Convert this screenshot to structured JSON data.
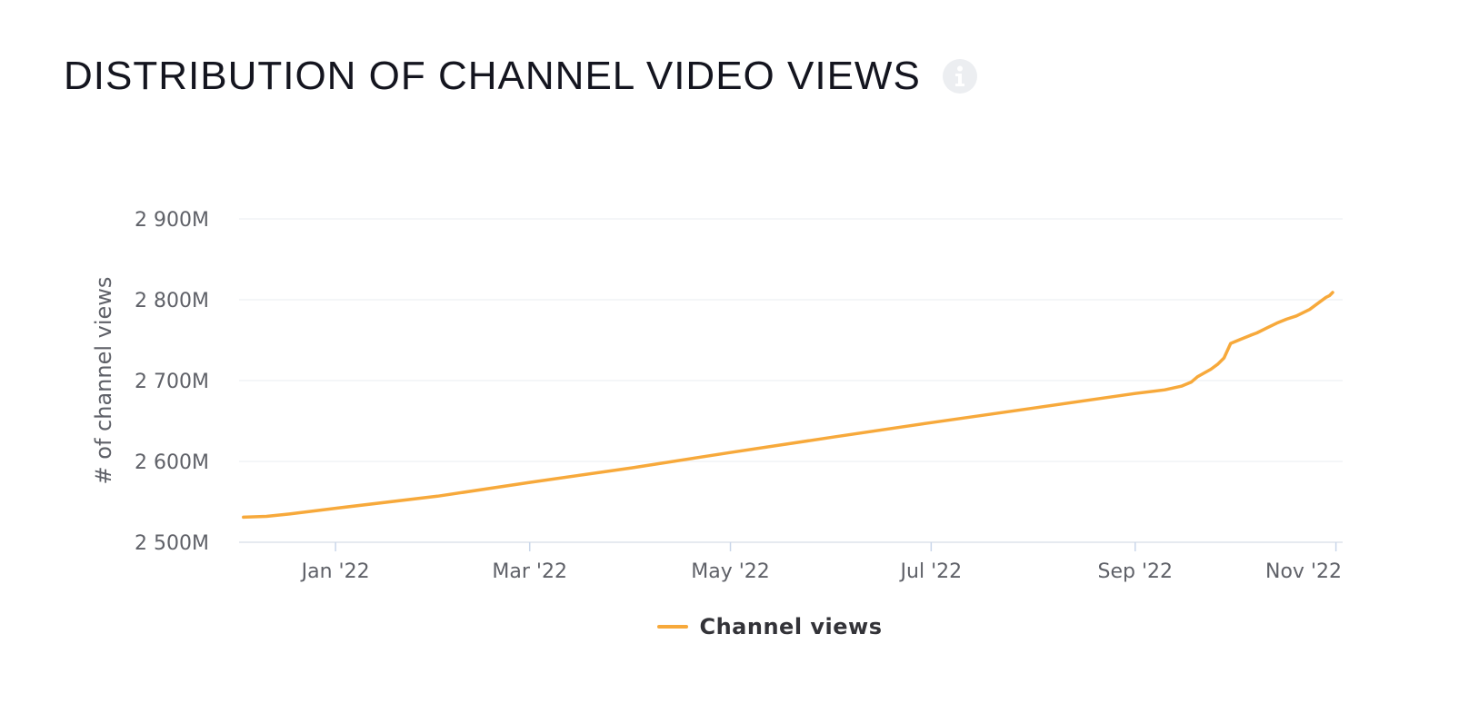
{
  "header": {
    "title": "DISTRIBUTION OF CHANNEL VIDEO VIEWS",
    "info_icon": "info-icon"
  },
  "colors": {
    "series": "#f7a93b",
    "grid": "#eef0f3",
    "axis": "#dde3ec",
    "tick_mark": "#c9d6ea"
  },
  "chart_data": {
    "type": "line",
    "title": "DISTRIBUTION OF CHANNEL VIDEO VIEWS",
    "xlabel": "",
    "ylabel": "# of channel views",
    "xlim": [
      "2021-12-06",
      "2022-10-31"
    ],
    "ylim": [
      2500,
      2900
    ],
    "y_unit": "M",
    "y_ticks": [
      2500,
      2600,
      2700,
      2800,
      2900
    ],
    "y_tick_labels": [
      "2 500M",
      "2 600M",
      "2 700M",
      "2 800M",
      "2 900M"
    ],
    "x_ticks": [
      "2022-01-01",
      "2022-03-01",
      "2022-05-01",
      "2022-07-01",
      "2022-09-01",
      "2022-11-01"
    ],
    "x_tick_labels": [
      "Jan '22",
      "Mar '22",
      "May '22",
      "Jul '22",
      "Sep '22",
      "Nov '22"
    ],
    "grid": true,
    "legend_position": "bottom-center",
    "series": [
      {
        "name": "Channel views",
        "points": [
          [
            "2021-12-04",
            2531.0
          ],
          [
            "2021-12-11",
            2532.0
          ],
          [
            "2021-12-18",
            2535.0
          ],
          [
            "2022-01-01",
            2542.0
          ],
          [
            "2022-02-01",
            2557.0
          ],
          [
            "2022-03-01",
            2574.0
          ],
          [
            "2022-04-01",
            2592.0
          ],
          [
            "2022-05-01",
            2611.0
          ],
          [
            "2022-06-01",
            2630.0
          ],
          [
            "2022-07-01",
            2648.0
          ],
          [
            "2022-08-01",
            2666.0
          ],
          [
            "2022-09-01",
            2684.0
          ],
          [
            "2022-09-10",
            2688.5
          ],
          [
            "2022-09-15",
            2693.0
          ],
          [
            "2022-09-18",
            2698.0
          ],
          [
            "2022-09-20",
            2705.0
          ],
          [
            "2022-09-24",
            2714.0
          ],
          [
            "2022-09-26",
            2720.0
          ],
          [
            "2022-09-28",
            2728.0
          ],
          [
            "2022-09-30",
            2746.0
          ],
          [
            "2022-10-03",
            2751.0
          ],
          [
            "2022-10-06",
            2756.0
          ],
          [
            "2022-10-08",
            2759.0
          ],
          [
            "2022-10-11",
            2765.0
          ],
          [
            "2022-10-14",
            2771.0
          ],
          [
            "2022-10-17",
            2776.0
          ],
          [
            "2022-10-20",
            2780.0
          ],
          [
            "2022-10-24",
            2788.0
          ],
          [
            "2022-10-27",
            2797.0
          ],
          [
            "2022-10-29",
            2803.0
          ],
          [
            "2022-10-30",
            2805.0
          ],
          [
            "2022-10-31",
            2809.0
          ]
        ]
      }
    ]
  }
}
